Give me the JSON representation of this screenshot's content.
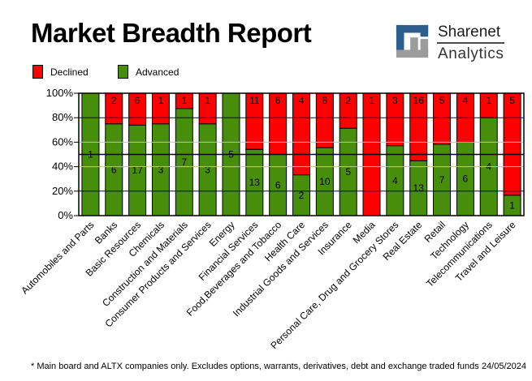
{
  "title": "Market Breadth Report",
  "logo": {
    "line1": "Sharenet",
    "line2": "Analytics",
    "blue": "#2d5f8e",
    "gray": "#9c9c9c"
  },
  "legend": [
    {
      "label": "Declined",
      "color": "#ff0000"
    },
    {
      "label": "Advanced",
      "color": "#478f0a"
    }
  ],
  "footnote": "* Main board and ALTX companies only. Excludes options, warrants, derivatives, debt and exchange traded funds",
  "date": "24/05/2024",
  "chart_data": {
    "type": "bar",
    "stacked": true,
    "stack_mode": "percent",
    "title": "Market Breadth Report",
    "ylabel": "",
    "xlabel": "",
    "ylim": [
      0,
      100
    ],
    "yticks": [
      "0%",
      "20%",
      "40%",
      "60%",
      "80%",
      "100%"
    ],
    "legend_position": "top-left",
    "categories": [
      "Automobiles and Parts",
      "Banks",
      "Basic Resources",
      "Chemicals",
      "Construction and Materials",
      "Consumer Products and Services",
      "Energy",
      "Financial Services",
      "Food,Beverages and Tobacco",
      "Health Care",
      "Industrial Goods and Services",
      "Insurance",
      "Media",
      "Personal Care, Drug and Grocery Stores",
      "Real Estate",
      "Retail",
      "Technology",
      "Telecommunications",
      "Travel and Leisure"
    ],
    "series": [
      {
        "name": "Declined",
        "color": "#ff0000",
        "values": [
          0,
          2,
          6,
          1,
          1,
          1,
          0,
          11,
          6,
          4,
          8,
          2,
          1,
          3,
          16,
          5,
          4,
          1,
          5
        ]
      },
      {
        "name": "Advanced",
        "color": "#478f0a",
        "values": [
          1,
          6,
          17,
          3,
          7,
          3,
          5,
          13,
          6,
          2,
          10,
          5,
          0,
          4,
          13,
          7,
          6,
          4,
          1
        ]
      }
    ],
    "gridlines": [
      {
        "y": 20,
        "color": "#000080"
      },
      {
        "y": 40,
        "color": "#c0c0c0"
      },
      {
        "y": 50,
        "color": "#000000"
      },
      {
        "y": 60,
        "color": "#c0c0c0"
      },
      {
        "y": 80,
        "color": "#000080"
      }
    ]
  }
}
